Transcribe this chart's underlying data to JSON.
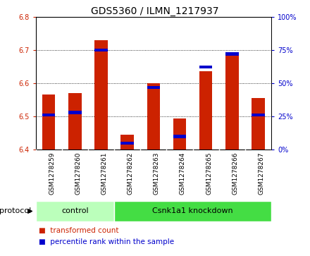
{
  "title": "GDS5360 / ILMN_1217937",
  "samples": [
    "GSM1278259",
    "GSM1278260",
    "GSM1278261",
    "GSM1278262",
    "GSM1278263",
    "GSM1278264",
    "GSM1278265",
    "GSM1278266",
    "GSM1278267"
  ],
  "transformed_counts": [
    6.565,
    6.57,
    6.73,
    6.445,
    6.6,
    6.495,
    6.635,
    6.685,
    6.555
  ],
  "percentile_ranks": [
    26,
    28,
    75,
    5,
    47,
    10,
    62,
    72,
    26
  ],
  "ylim": [
    6.4,
    6.8
  ],
  "y2lim": [
    0,
    100
  ],
  "yticks": [
    6.4,
    6.5,
    6.6,
    6.7,
    6.8
  ],
  "y2ticks": [
    0,
    25,
    50,
    75,
    100
  ],
  "bar_color": "#cc2200",
  "percentile_color": "#0000cc",
  "bar_width": 0.5,
  "groups": [
    {
      "label": "control",
      "start": 0,
      "end": 3,
      "color": "#bbffbb"
    },
    {
      "label": "Csnk1a1 knockdown",
      "start": 3,
      "end": 9,
      "color": "#44dd44"
    }
  ],
  "protocol_label": "protocol",
  "legend_items": [
    {
      "label": "transformed count",
      "color": "#cc2200"
    },
    {
      "label": "percentile rank within the sample",
      "color": "#0000cc"
    }
  ],
  "xticklabel_bg": "#cccccc",
  "plot_bg_color": "#ffffff",
  "title_fontsize": 10,
  "tick_fontsize": 7,
  "legend_fontsize": 7.5,
  "protocol_fontsize": 8,
  "group_fontsize": 8
}
